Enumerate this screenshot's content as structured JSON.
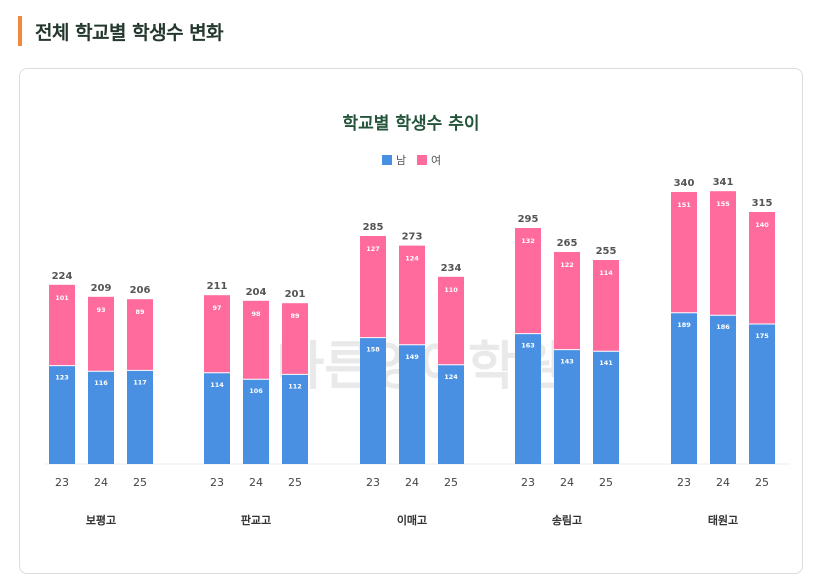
{
  "section": {
    "title": "전체 학교별 학생수 변화"
  },
  "watermark": {
    "text": "바른영어학원"
  },
  "colors": {
    "male": "#4a90e2",
    "female": "#ff6b9d",
    "accent": "#f0883e",
    "title": "#24553b"
  },
  "chart_data": {
    "type": "bar",
    "stacked": true,
    "title": "학교별 학생수 추이",
    "legend": [
      "남",
      "여"
    ],
    "legend_position": "top-center",
    "ylim": [
      0,
      360
    ],
    "groups": [
      {
        "school": "보평고",
        "years": [
          "23",
          "24",
          "25"
        ],
        "male": [
          123,
          116,
          117
        ],
        "female": [
          101,
          93,
          89
        ],
        "totals": [
          "224",
          "209",
          "206"
        ]
      },
      {
        "school": "판교고",
        "years": [
          "23",
          "24",
          "25"
        ],
        "male": [
          114,
          106,
          112
        ],
        "female": [
          97,
          98,
          89
        ],
        "totals": [
          "211",
          "204",
          "201"
        ]
      },
      {
        "school": "이매고",
        "years": [
          "23",
          "24",
          "25"
        ],
        "male": [
          158,
          149,
          124
        ],
        "female": [
          127,
          124,
          110
        ],
        "totals": [
          "285",
          "273",
          "234"
        ]
      },
      {
        "school": "송림고",
        "years": [
          "23",
          "24",
          "25"
        ],
        "male": [
          163,
          143,
          141
        ],
        "female": [
          132,
          122,
          114
        ],
        "totals": [
          "295",
          "265",
          "255"
        ]
      },
      {
        "school": "태원고",
        "years": [
          "23",
          "24",
          "25"
        ],
        "male": [
          189,
          186,
          175
        ],
        "female": [
          151,
          155,
          140
        ],
        "totals": [
          "340",
          "341",
          "315"
        ]
      }
    ]
  }
}
